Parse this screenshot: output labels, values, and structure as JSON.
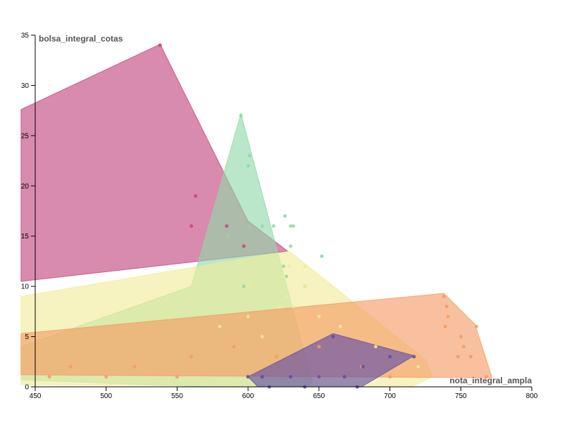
{
  "chart_data": {
    "type": "scatter",
    "title": "",
    "xlabel": "nota_integral_ampla",
    "ylabel": "bolsa_integral_cotas",
    "xlim": [
      450,
      800
    ],
    "ylim": [
      0,
      35
    ],
    "x_ticks": [
      "450",
      "500",
      "550",
      "600",
      "650",
      "700",
      "750",
      "800"
    ],
    "y_ticks": [
      "0",
      "5",
      "10",
      "15",
      "20",
      "25",
      "30",
      "35"
    ],
    "grid": false,
    "legend": "none",
    "series": [
      {
        "color": "#c2437a",
        "hull": [
          [
            538,
            34.1
          ],
          [
            600,
            16.5
          ],
          [
            628,
            13.5
          ],
          [
            440,
            10.5
          ],
          [
            440,
            27.6
          ]
        ],
        "points": [
          [
            538,
            34
          ],
          [
            563,
            19
          ],
          [
            560,
            16
          ],
          [
            585,
            16
          ],
          [
            597,
            14
          ]
        ]
      },
      {
        "color": "#8fd8a8",
        "hull": [
          [
            595,
            27.2
          ],
          [
            646,
            0
          ],
          [
            570,
            0
          ],
          [
            440,
            0.7
          ],
          [
            440,
            4.0
          ],
          [
            560,
            10.0
          ]
        ],
        "points": [
          [
            595,
            27
          ],
          [
            601,
            23
          ],
          [
            600,
            22
          ],
          [
            610,
            16
          ],
          [
            618,
            16
          ],
          [
            630,
            16
          ],
          [
            632,
            16
          ],
          [
            626,
            17
          ],
          [
            630,
            14
          ],
          [
            652,
            13
          ],
          [
            586,
            15
          ],
          [
            625,
            12
          ],
          [
            640,
            10
          ],
          [
            627,
            11
          ],
          [
            597,
            10
          ]
        ]
      },
      {
        "color": "#f0eb9a",
        "hull": [
          [
            629,
            13.5
          ],
          [
            725,
            2.7
          ],
          [
            730,
            1.0
          ],
          [
            715,
            0
          ],
          [
            440,
            0.2
          ],
          [
            440,
            9.0
          ]
        ],
        "points": [
          [
            629,
            12
          ],
          [
            640,
            12
          ],
          [
            625,
            11
          ],
          [
            640,
            10
          ],
          [
            627,
            9
          ],
          [
            600,
            10
          ],
          [
            632,
            8
          ],
          [
            650,
            7
          ],
          [
            622,
            8
          ],
          [
            600,
            7
          ],
          [
            580,
            6
          ],
          [
            610,
            5
          ],
          [
            665,
            6
          ],
          [
            690,
            4
          ],
          [
            720,
            2
          ]
        ]
      },
      {
        "color": "#f49a62",
        "hull": [
          [
            738,
            9.3
          ],
          [
            760,
            6.2
          ],
          [
            772,
            0.9
          ],
          [
            440,
            1.2
          ],
          [
            440,
            5.3
          ]
        ],
        "points": [
          [
            738,
            9
          ],
          [
            740,
            8
          ],
          [
            741,
            7
          ],
          [
            739,
            6
          ],
          [
            761,
            6
          ],
          [
            750,
            5
          ],
          [
            752,
            4
          ],
          [
            748,
            3
          ],
          [
            757,
            3
          ],
          [
            768,
            1
          ],
          [
            700,
            1
          ],
          [
            680,
            2
          ],
          [
            650,
            1
          ],
          [
            600,
            1
          ],
          [
            550,
            1
          ],
          [
            500,
            1
          ],
          [
            460,
            1
          ],
          [
            475,
            2
          ],
          [
            520,
            2
          ],
          [
            560,
            3
          ],
          [
            590,
            4
          ],
          [
            620,
            3
          ],
          [
            650,
            4
          ]
        ]
      },
      {
        "color": "#5f4aa6",
        "hull": [
          [
            660,
            5.3
          ],
          [
            717,
            3.1
          ],
          [
            680,
            0
          ],
          [
            607,
            0
          ],
          [
            600,
            1.0
          ]
        ],
        "points": [
          [
            660,
            5
          ],
          [
            717,
            3
          ],
          [
            700,
            3
          ],
          [
            681,
            2
          ],
          [
            668,
            1
          ],
          [
            650,
            1
          ],
          [
            630,
            1
          ],
          [
            615,
            0
          ],
          [
            640,
            0
          ],
          [
            677,
            0
          ],
          [
            600,
            1
          ],
          [
            610,
            1
          ]
        ]
      }
    ]
  }
}
